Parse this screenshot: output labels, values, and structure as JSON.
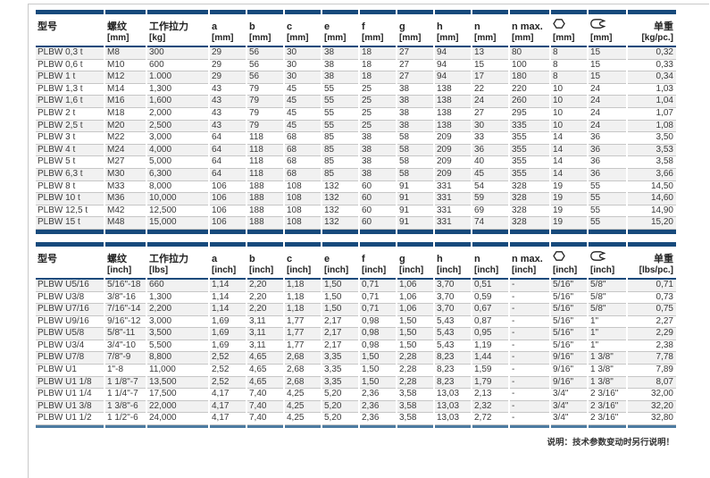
{
  "note": "说明：技术参数变动时另行说明！",
  "colors": {
    "table_accent_navy": "#174a7c",
    "imperial_end_bar_blue": "#4d7ba1"
  },
  "metric_table": {
    "headers": [
      {
        "label": "型号",
        "unit": ""
      },
      {
        "label": "螺纹",
        "unit": "[mm]"
      },
      {
        "label": "工作拉力",
        "unit": "[kg]"
      },
      {
        "label": "a",
        "unit": "[mm]"
      },
      {
        "label": "b",
        "unit": "[mm]"
      },
      {
        "label": "c",
        "unit": "[mm]"
      },
      {
        "label": "e",
        "unit": "[mm]"
      },
      {
        "label": "f",
        "unit": "[mm]"
      },
      {
        "label": "g",
        "unit": "[mm]"
      },
      {
        "label": "h",
        "unit": "[mm]"
      },
      {
        "label": "n",
        "unit": "[mm]"
      },
      {
        "label": "n max.",
        "unit": "[mm]"
      },
      {
        "icon": "hexagon-icon",
        "unit": "[mm]"
      },
      {
        "icon": "wrench-icon",
        "unit": "[mm]"
      },
      {
        "label": "单重",
        "unit": "[kg/pc.]",
        "align": "right"
      }
    ],
    "rows": [
      [
        "PLBW 0,3 t",
        "M8",
        "300",
        "29",
        "56",
        "30",
        "38",
        "18",
        "27",
        "94",
        "13",
        "80",
        "8",
        "15",
        "0,32"
      ],
      [
        "PLBW 0,6 t",
        "M10",
        "600",
        "29",
        "56",
        "30",
        "38",
        "18",
        "27",
        "94",
        "15",
        "100",
        "8",
        "15",
        "0,33"
      ],
      [
        "PLBW 1 t",
        "M12",
        "1.000",
        "29",
        "56",
        "30",
        "38",
        "18",
        "27",
        "94",
        "17",
        "180",
        "8",
        "15",
        "0,34"
      ],
      [
        "PLBW 1,3 t",
        "M14",
        "1,300",
        "43",
        "79",
        "45",
        "55",
        "25",
        "38",
        "138",
        "22",
        "220",
        "10",
        "24",
        "1,03"
      ],
      [
        "PLBW 1,6 t",
        "M16",
        "1,600",
        "43",
        "79",
        "45",
        "55",
        "25",
        "38",
        "138",
        "24",
        "260",
        "10",
        "24",
        "1,04"
      ],
      [
        "PLBW 2 t",
        "M18",
        "2,000",
        "43",
        "79",
        "45",
        "55",
        "25",
        "38",
        "138",
        "27",
        "295",
        "10",
        "24",
        "1,07"
      ],
      [
        "PLBW 2,5 t",
        "M20",
        "2,500",
        "43",
        "79",
        "45",
        "55",
        "25",
        "38",
        "138",
        "30",
        "335",
        "10",
        "24",
        "1,08"
      ],
      [
        "PLBW 3 t",
        "M22",
        "3,000",
        "64",
        "118",
        "68",
        "85",
        "38",
        "58",
        "209",
        "33",
        "355",
        "14",
        "36",
        "3,50"
      ],
      [
        "PLBW 4 t",
        "M24",
        "4,000",
        "64",
        "118",
        "68",
        "85",
        "38",
        "58",
        "209",
        "36",
        "355",
        "14",
        "36",
        "3,53"
      ],
      [
        "PLBW 5 t",
        "M27",
        "5,000",
        "64",
        "118",
        "68",
        "85",
        "38",
        "58",
        "209",
        "40",
        "355",
        "14",
        "36",
        "3,58"
      ],
      [
        "PLBW 6,3 t",
        "M30",
        "6,300",
        "64",
        "118",
        "68",
        "85",
        "38",
        "58",
        "209",
        "45",
        "355",
        "14",
        "36",
        "3,66"
      ],
      [
        "PLBW 8 t",
        "M33",
        "8,000",
        "106",
        "188",
        "108",
        "132",
        "60",
        "91",
        "331",
        "54",
        "328",
        "19",
        "55",
        "14,50"
      ],
      [
        "PLBW 10 t",
        "M36",
        "10,000",
        "106",
        "188",
        "108",
        "132",
        "60",
        "91",
        "331",
        "59",
        "328",
        "19",
        "55",
        "14,60"
      ],
      [
        "PLBW 12,5 t",
        "M42",
        "12,500",
        "106",
        "188",
        "108",
        "132",
        "60",
        "91",
        "331",
        "69",
        "328",
        "19",
        "55",
        "14,90"
      ],
      [
        "PLBW 15 t",
        "M48",
        "15,000",
        "106",
        "188",
        "108",
        "132",
        "60",
        "91",
        "331",
        "74",
        "328",
        "19",
        "55",
        "15,20"
      ]
    ]
  },
  "imperial_table": {
    "headers": [
      {
        "label": "型号",
        "unit": ""
      },
      {
        "label": "螺纹",
        "unit": "[inch]"
      },
      {
        "label": "工作拉力",
        "unit": "[lbs]"
      },
      {
        "label": "a",
        "unit": "[inch]"
      },
      {
        "label": "b",
        "unit": "[inch]"
      },
      {
        "label": "c",
        "unit": "[inch]"
      },
      {
        "label": "e",
        "unit": "[inch]"
      },
      {
        "label": "f",
        "unit": "[inch]"
      },
      {
        "label": "g",
        "unit": "[inch]"
      },
      {
        "label": "h",
        "unit": "[inch]"
      },
      {
        "label": "n",
        "unit": "[inch]"
      },
      {
        "label": "n max.",
        "unit": "[inch]"
      },
      {
        "icon": "hexagon-icon",
        "unit": "[inch]"
      },
      {
        "icon": "wrench-icon",
        "unit": "[inch]"
      },
      {
        "label": "单重",
        "unit": "[lbs/pc.]",
        "align": "right"
      }
    ],
    "rows": [
      [
        "PLBW U5/16",
        "5/16\"-18",
        "660",
        "1,14",
        "2,20",
        "1,18",
        "1,50",
        "0,71",
        "1,06",
        "3,70",
        "0,51",
        "-",
        "5/16\"",
        "5/8\"",
        "0,71"
      ],
      [
        "PLBW U3/8",
        "3/8\"-16",
        "1,300",
        "1,14",
        "2,20",
        "1,18",
        "1,50",
        "0,71",
        "1,06",
        "3,70",
        "0,59",
        "-",
        "5/16\"",
        "5/8\"",
        "0,73"
      ],
      [
        "PLBW U7/16",
        "7/16\"-14",
        "2,200",
        "1,14",
        "2,20",
        "1,18",
        "1,50",
        "0,71",
        "1,06",
        "3,70",
        "0,67",
        "-",
        "5/16\"",
        "5/8\"",
        "0,75"
      ],
      [
        "PLBW U9/16",
        "9/16\"-12",
        "3,000",
        "1,69",
        "3,11",
        "1,77",
        "2,17",
        "0,98",
        "1,50",
        "5,43",
        "0,87",
        "-",
        "5/16\"",
        "1\"",
        "2,27"
      ],
      [
        "PLBW U5/8",
        "5/8\"-11",
        "3,500",
        "1,69",
        "3,11",
        "1,77",
        "2,17",
        "0,98",
        "1,50",
        "5,43",
        "0,95",
        "-",
        "5/16\"",
        "1\"",
        "2,29"
      ],
      [
        "PLBW U3/4",
        "3/4\"-10",
        "5,500",
        "1,69",
        "3,11",
        "1,77",
        "2,17",
        "0,98",
        "1,50",
        "5,43",
        "1,19",
        "-",
        "5/16\"",
        "1\"",
        "2,38"
      ],
      [
        "PLBW U7/8",
        "7/8\"-9",
        "8,800",
        "2,52",
        "4,65",
        "2,68",
        "3,35",
        "1,50",
        "2,28",
        "8,23",
        "1,44",
        "-",
        "9/16\"",
        "1 3/8\"",
        "7,78"
      ],
      [
        "PLBW U1",
        "1\"-8",
        "11,000",
        "2,52",
        "4,65",
        "2,68",
        "3,35",
        "1,50",
        "2,28",
        "8,23",
        "1,59",
        "-",
        "9/16\"",
        "1 3/8\"",
        "7,89"
      ],
      [
        "PLBW U1 1/8",
        "1 1/8\"-7",
        "13,500",
        "2,52",
        "4,65",
        "2,68",
        "3,35",
        "1,50",
        "2,28",
        "8,23",
        "1,79",
        "-",
        "9/16\"",
        "1 3/8\"",
        "8,07"
      ],
      [
        "PLBW U1 1/4",
        "1 1/4\"-7",
        "17,500",
        "4,17",
        "7,40",
        "4,25",
        "5,20",
        "2,36",
        "3,58",
        "13,03",
        "2,13",
        "-",
        "3/4\"",
        "2 3/16\"",
        "32,00"
      ],
      [
        "PLBW U1 3/8",
        "1 3/8\"-6",
        "22,000",
        "4,17",
        "7,40",
        "4,25",
        "5,20",
        "2,36",
        "3,58",
        "13,03",
        "2,32",
        "-",
        "3/4\"",
        "2 3/16\"",
        "32,20"
      ],
      [
        "PLBW U1 1/2",
        "1 1/2\"-6",
        "24,000",
        "4,17",
        "7,40",
        "4,25",
        "5,20",
        "2,36",
        "3,58",
        "13,03",
        "2,72",
        "-",
        "3/4\"",
        "2 3/16\"",
        "32,80"
      ]
    ]
  }
}
